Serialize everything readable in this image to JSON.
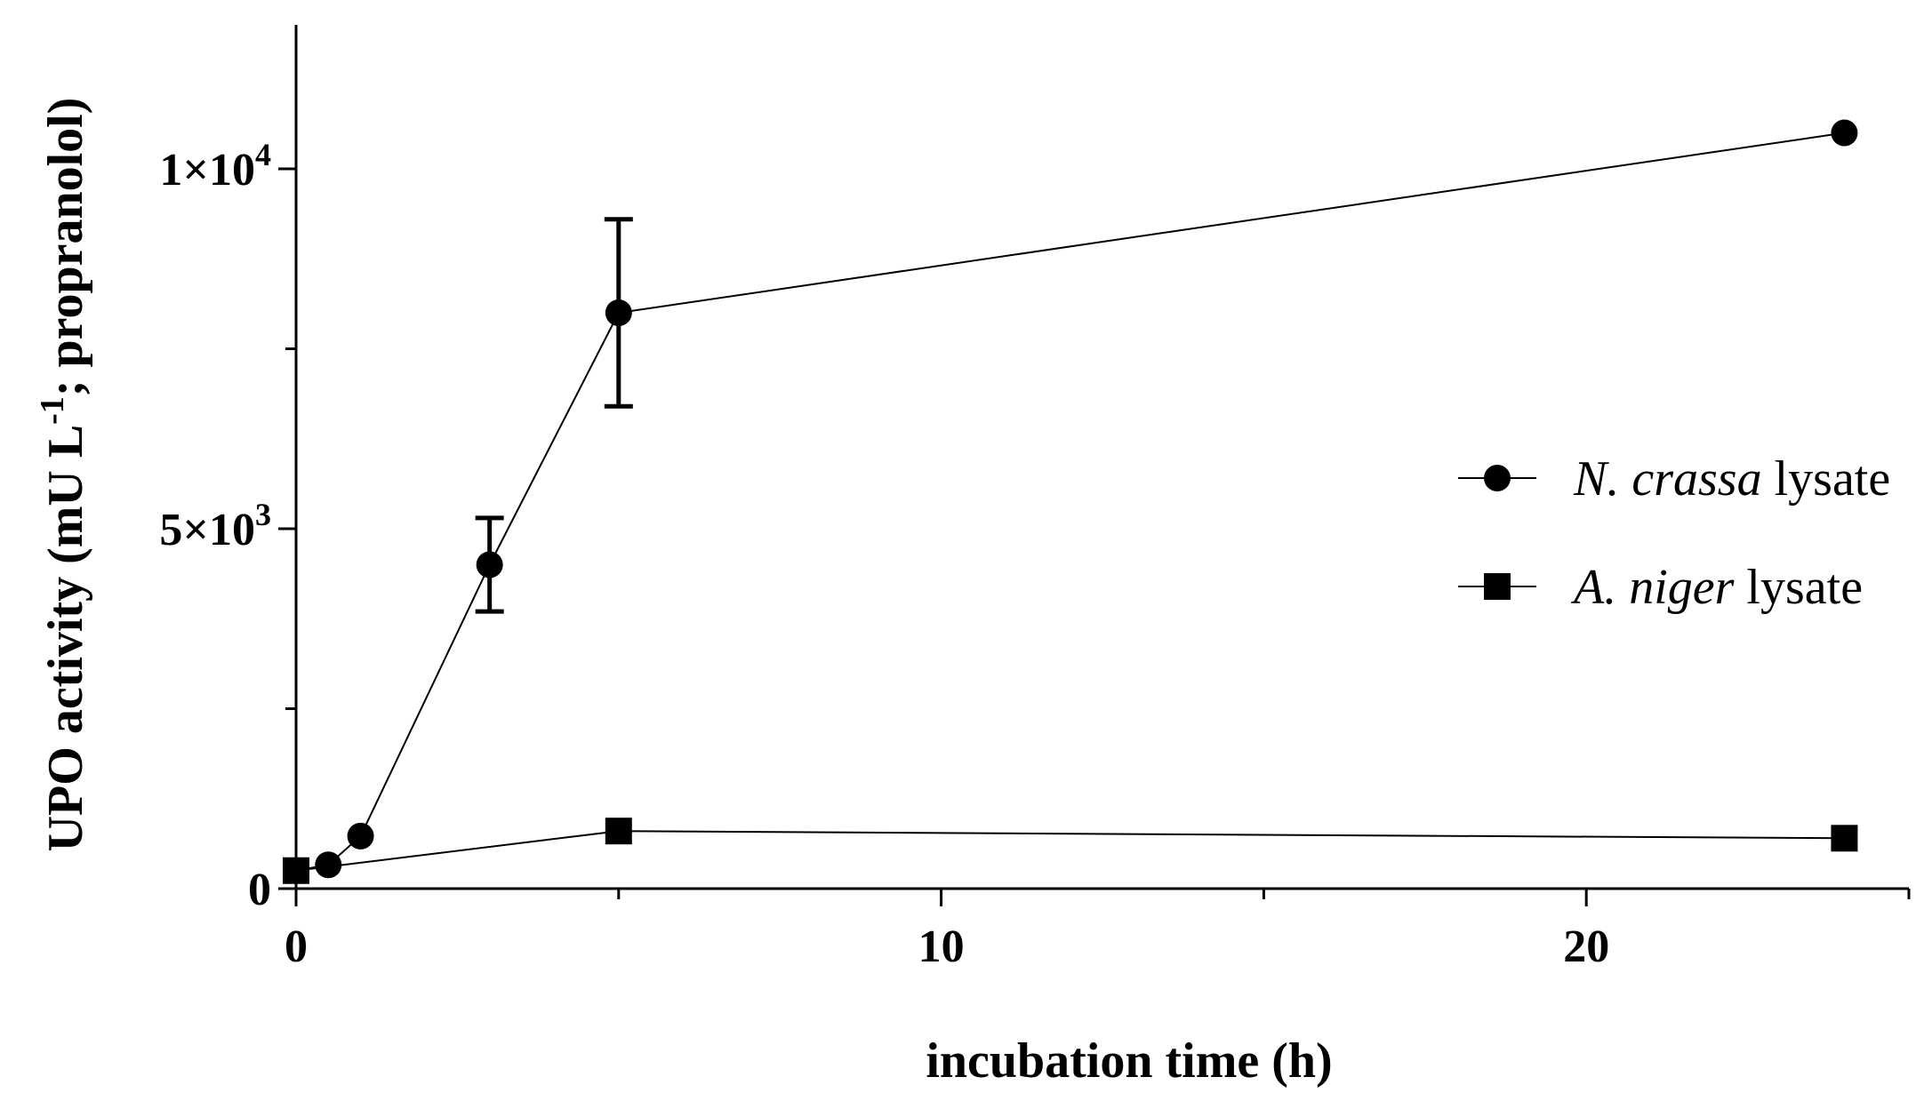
{
  "chart_data": {
    "type": "line",
    "title": "",
    "xlabel": "incubation time (h)",
    "ylabel": {
      "text": "UPO activity (mU L",
      "superscript": "-1",
      "suffix": "; propranolol)"
    },
    "xlim": [
      0,
      25
    ],
    "ylim": [
      0,
      12000
    ],
    "x_ticks": [
      {
        "value": 0,
        "label": "0"
      },
      {
        "value": 10,
        "label": "10"
      },
      {
        "value": 20,
        "label": "20"
      }
    ],
    "x_minor_ticks": [
      5,
      15,
      25
    ],
    "y_ticks": [
      {
        "value": 0,
        "label": "0"
      },
      {
        "value": 5000,
        "label": "5×10",
        "exp": "3"
      },
      {
        "value": 10000,
        "label": "1×10",
        "exp": "4"
      }
    ],
    "y_minor_ticks": [
      2500,
      7500
    ],
    "legend_position": "right",
    "series": [
      {
        "name_italic": "N. crassa",
        "name_rest": " lysate",
        "marker": "circle",
        "points": [
          {
            "x": 0,
            "y": 250
          },
          {
            "x": 0.5,
            "y": 330
          },
          {
            "x": 1,
            "y": 730
          },
          {
            "x": 3,
            "y": 4500,
            "err": 650
          },
          {
            "x": 5,
            "y": 8000,
            "err": 1300
          },
          {
            "x": 24,
            "y": 10500
          }
        ]
      },
      {
        "name_italic": "A. niger",
        "name_rest": " lysate",
        "marker": "square",
        "points": [
          {
            "x": 0,
            "y": 250
          },
          {
            "x": 5,
            "y": 800
          },
          {
            "x": 24,
            "y": 700
          }
        ]
      }
    ]
  }
}
